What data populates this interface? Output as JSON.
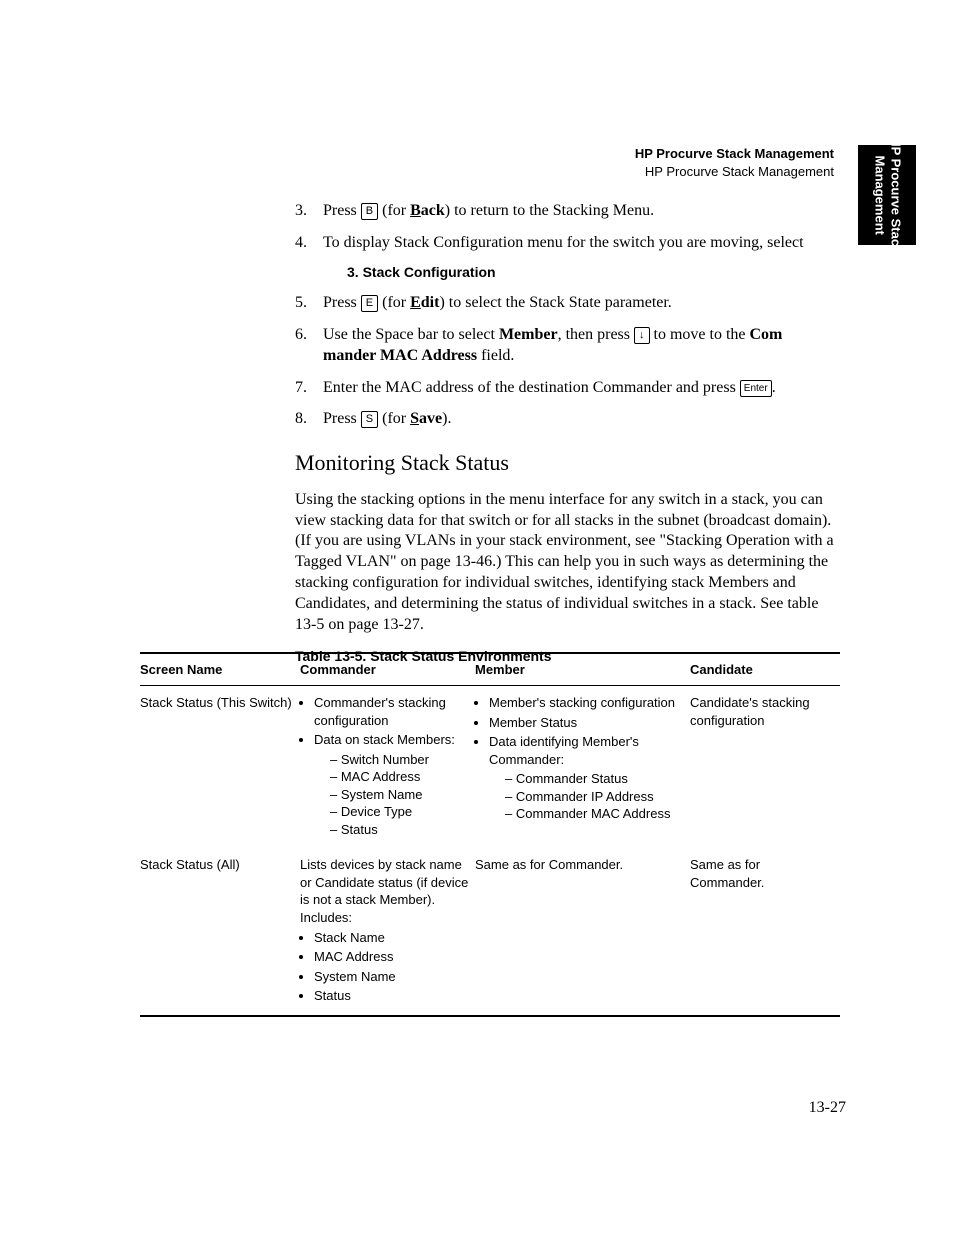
{
  "header": {
    "title_bold": "HP Procurve Stack Management",
    "subtitle": "HP Procurve Stack Management"
  },
  "side_tab": {
    "line1": "HP Procurve Stack",
    "line2": "Management"
  },
  "steps": {
    "s3": {
      "num": "3.",
      "pre": "Press ",
      "key": "B",
      "mid": " (for ",
      "bold_u": "B",
      "bold_rest": "ack",
      "post": ") to return to the Stacking Menu."
    },
    "s4": {
      "num": "4.",
      "text": "To display Stack Configuration menu for the switch you are moving, select"
    },
    "s4_sub": "3. Stack Configuration",
    "s5": {
      "num": "5.",
      "pre": "Press ",
      "key": "E",
      "mid": " (for ",
      "bold_u": "E",
      "bold_rest": "dit",
      "post": ") to select the Stack State parameter."
    },
    "s6": {
      "num": "6.",
      "pre": "Use the Space bar to select ",
      "bold1": "Member",
      "mid": ", then press ",
      "key": "↓",
      "post": " to move to the ",
      "bold2a": "Com",
      "bold2b": "mander MAC Address",
      "tail": " field."
    },
    "s7": {
      "num": "7.",
      "pre": "Enter the MAC address of the destination Commander and press ",
      "key": "Enter",
      "post": "."
    },
    "s8": {
      "num": "8.",
      "pre": "Press ",
      "key": "S",
      "mid": " (for ",
      "bold_u": "S",
      "bold_rest": "ave",
      "post": ")."
    }
  },
  "section_heading": "Monitoring Stack Status",
  "paragraph": "Using the stacking options in the menu interface for any switch in a stack, you can view stacking data for that switch or for all stacks in the subnet (broadcast domain). (If you are using VLANs in your stack environment, see \"Stacking Operation with a Tagged VLAN\" on page 13-46.) This can help you in such ways as determining the stacking configuration for individual switches, identifying stack Members and Candidates, and determining the status of individual switches in a stack. See table 13-5 on page 13-27.",
  "table": {
    "caption": "Table 13-5. Stack Status Environments",
    "columns": [
      "Screen Name",
      "Commander",
      "Member",
      "Candidate"
    ],
    "rows": [
      {
        "screen": "Stack Status (This Switch)",
        "commander": {
          "bullets": [
            "Commander's stacking configuration",
            "Data on stack Members:"
          ],
          "sub": [
            "Switch Number",
            "MAC Address",
            "System Name",
            "Device Type",
            "Status"
          ]
        },
        "member": {
          "bullets": [
            "Member's stacking configuration",
            "Member Status",
            "Data identifying Member's Commander:"
          ],
          "sub": [
            "Commander Status",
            "Commander IP Address",
            "Commander MAC Address"
          ]
        },
        "candidate": "Candidate's stacking configuration"
      },
      {
        "screen": "Stack Status (All)",
        "commander": {
          "intro": "Lists devices by stack name or Candidate status (if device is not a stack Member). Includes:",
          "bullets": [
            "Stack Name",
            "MAC Address",
            "System Name",
            "Status"
          ]
        },
        "member": "Same as for Commander.",
        "candidate": "Same as for Commander."
      }
    ]
  },
  "page_number": "13-27"
}
